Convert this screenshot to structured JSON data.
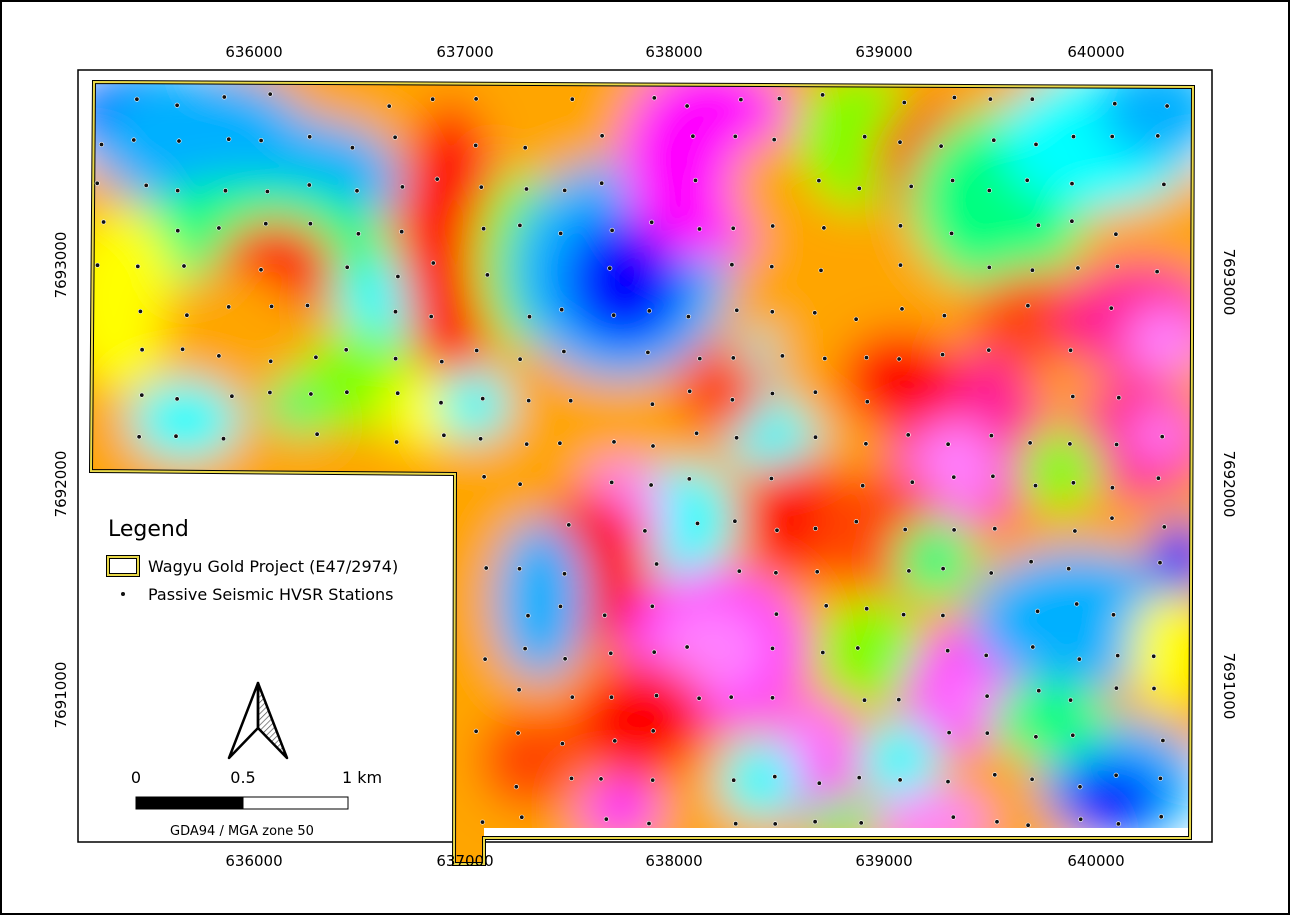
{
  "map": {
    "x_ticks": [
      "636000",
      "637000",
      "638000",
      "639000",
      "640000"
    ],
    "y_ticks": [
      "7693000",
      "7692000",
      "7691000"
    ]
  },
  "legend": {
    "title": "Legend",
    "project_label": "Wagyu Gold Project (E47/2974)",
    "stations_label": "Passive Seismic HVSR Stations"
  },
  "scalebar": {
    "labels": [
      "0",
      "0.5",
      "1 km"
    ],
    "crs": "GDA94 / MGA zone 50"
  },
  "colors": {
    "boundary": "#e8d84a",
    "station": "#111111",
    "palette": [
      "#0000ff",
      "#00b0ff",
      "#00ffff",
      "#00ff80",
      "#7fff00",
      "#ffff00",
      "#ffa500",
      "#ff4500",
      "#ff0000",
      "#ff1493",
      "#ff00ff",
      "#ff80ff"
    ]
  }
}
